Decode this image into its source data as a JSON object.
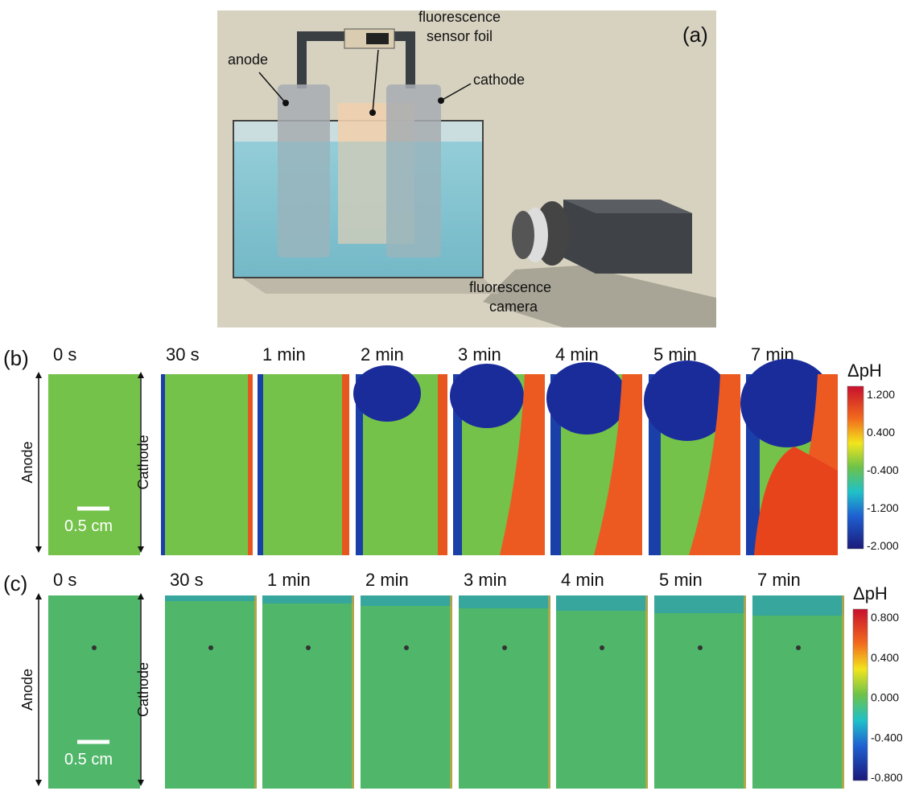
{
  "panel_a": {
    "label": "(a)",
    "foil_callout": [
      "fluorescence",
      "sensor foil"
    ],
    "anode_callout": "anode",
    "cathode_callout": "cathode",
    "camera_callout": [
      "fluorescence",
      "camera"
    ]
  },
  "panel_b": {
    "label": "(b)",
    "times": [
      "0 s",
      "30 s",
      "1 min",
      "2 min",
      "3 min",
      "4 min",
      "5 min",
      "7 min"
    ],
    "anode_label": "Anode",
    "cathode_label": "Cathode",
    "scale_bar": "0.5 cm",
    "colorbar_title": "ΔpH",
    "colorbar_ticks": [
      "1.200",
      "0.400",
      "-0.400",
      "-1.200",
      "-2.000"
    ]
  },
  "panel_c": {
    "label": "(c)",
    "times": [
      "0 s",
      "30 s",
      "1 min",
      "2 min",
      "3 min",
      "4 min",
      "5 min",
      "7 min"
    ],
    "anode_label": "Anode",
    "cathode_label": "Cathode",
    "scale_bar": "0.5 cm",
    "colorbar_title": "ΔpH",
    "colorbar_ticks": [
      "0.800",
      "0.400",
      "0.000",
      "-0.400",
      "-0.800"
    ]
  }
}
